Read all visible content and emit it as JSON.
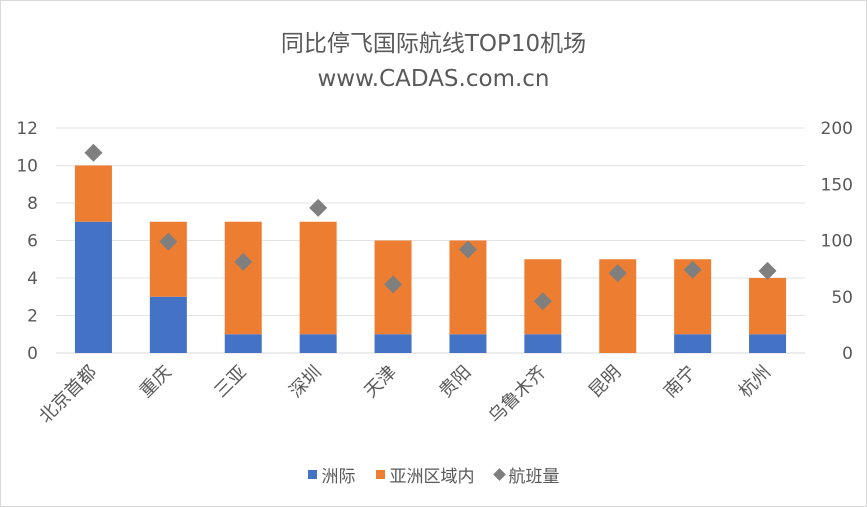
{
  "chart_data": {
    "type": "bar",
    "title": "同比停飞国际航线TOP10机场",
    "subtitle": "www.CADAS.com.cn",
    "categories": [
      "北京首都",
      "重庆",
      "三亚",
      "深圳",
      "天津",
      "贵阳",
      "乌鲁木齐",
      "昆明",
      "南宁",
      "杭州"
    ],
    "series": [
      {
        "name": "洲际",
        "type": "bar",
        "axis": "left",
        "color": "#4472C4",
        "values": [
          7,
          3,
          1,
          1,
          1,
          1,
          1,
          0,
          1,
          1
        ]
      },
      {
        "name": "亚洲区域内",
        "type": "bar",
        "axis": "left",
        "color": "#ED7D31",
        "values": [
          3,
          4,
          6,
          6,
          5,
          5,
          4,
          5,
          4,
          3
        ]
      },
      {
        "name": "航班量",
        "type": "scatter",
        "axis": "right",
        "color": "#7F7F7F",
        "values": [
          178,
          99,
          81,
          129,
          61,
          92,
          46,
          71,
          74,
          73
        ]
      }
    ],
    "ylim_left": [
      0,
      12
    ],
    "yticks_left": [
      "0",
      "2",
      "4",
      "6",
      "8",
      "10",
      "12"
    ],
    "ylim_right": [
      0,
      200
    ],
    "yticks_right": [
      "0",
      "50",
      "100",
      "150",
      "200"
    ],
    "stacked": true,
    "grid": true,
    "legend_position": "bottom"
  }
}
